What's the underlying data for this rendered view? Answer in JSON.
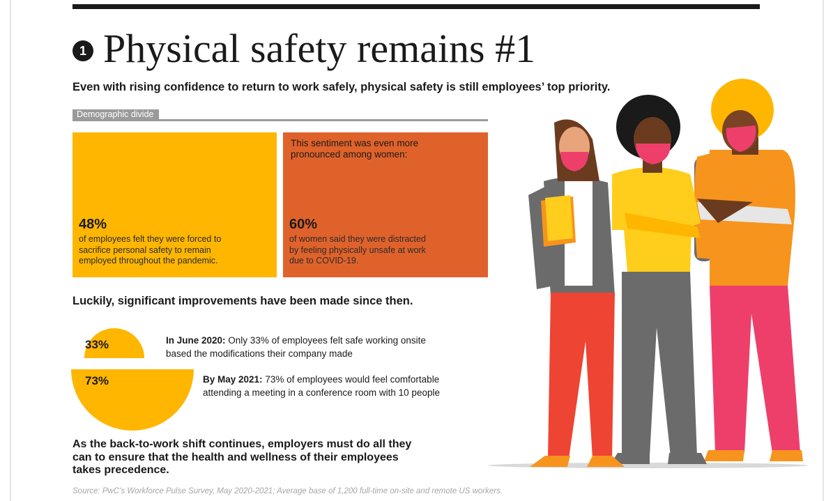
{
  "header": {
    "step_number": "1",
    "title": "Physical safety remains #1",
    "subtitle": "Even with rising confidence to return to work safely, physical safety is still employees’ top priority."
  },
  "demographic": {
    "tag": "Demographic divide",
    "cards": [
      {
        "intro": "",
        "percent_label": "48%",
        "fill_fraction": 0.48,
        "lines": [
          "of employees felt they were forced to",
          "sacrifice personal safety to remain",
          "employed throughout the pandemic."
        ],
        "color": "#ffb600"
      },
      {
        "intro_lines": [
          "This sentiment was even more",
          "pronounced among women:"
        ],
        "percent_label": "60%",
        "fill_fraction": 0.6,
        "lines": [
          "of women said they were distracted",
          "by feeling physically unsafe at work",
          "due to COVID-19."
        ],
        "color": "#e0622b"
      }
    ]
  },
  "improvements": {
    "heading": "Luckily, significant improvements have been made since then.",
    "items": [
      {
        "percent_label": "33%",
        "value": 0.33,
        "date_bold": "In June 2020:",
        "line1_rest": " Only 33% of employees felt safe working onsite",
        "line2": "based the modifications their company made"
      },
      {
        "percent_label": "73%",
        "value": 0.73,
        "date_bold": "By May 2021:",
        "line1_rest": " 73% of employees would feel comfortable",
        "line2": "attending a meeting in a conference room with 10 people"
      }
    ]
  },
  "closing": {
    "lines": [
      "As the back-to-work shift continues, employers must do all they",
      "can to ensure that the health and wellness of their employees",
      "takes precedence."
    ]
  },
  "source": "Source: PwC’s Workforce Pulse Survey, May 2020-2021; Average base of 1,200 full-time on-site and remote US workers.",
  "colors": {
    "accent_yellow": "#ffb600",
    "accent_orange": "#e0622b",
    "dark": "#1a1a1a",
    "card_bg": "#e6e6e6",
    "tag_gray": "#9a9a9a"
  },
  "illustration": {
    "icon": "three-masked-workers-illustration"
  }
}
